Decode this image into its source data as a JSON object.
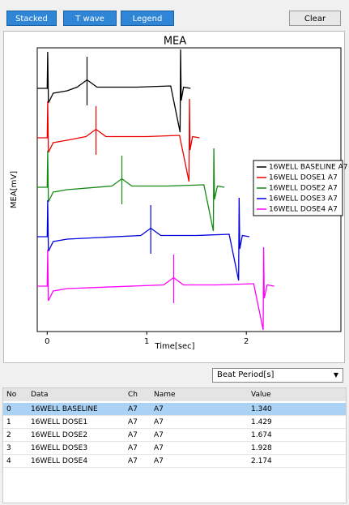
{
  "toolbar": {
    "buttons": [
      "Stacked",
      "T wave",
      "Legend"
    ],
    "clear": "Clear"
  },
  "chart_data": {
    "type": "line",
    "title": "MEA",
    "y_label": "MEA[mV]",
    "x_label": "Time[sec]",
    "xlim": [
      -0.1,
      2.95
    ],
    "xticks": [
      0,
      1,
      2
    ],
    "ylim": [
      -2,
      2
    ],
    "stacked": true,
    "legend": "right",
    "series": [
      {
        "name": "16WELL BASELINE A7",
        "color": "#000000",
        "t_wave": 0.4,
        "x": [
          -0.1,
          0,
          0.005,
          0.012,
          0.06,
          0.2,
          0.3,
          0.4,
          0.5,
          0.9,
          1.24,
          1.335,
          1.34,
          1.346,
          1.37,
          1.44
        ],
        "values": [
          0,
          0,
          1.5,
          -0.6,
          -0.2,
          -0.1,
          0.05,
          0.35,
          0.05,
          0.05,
          0.1,
          -1.8,
          1.6,
          -0.5,
          0.05,
          0
        ]
      },
      {
        "name": "16WELL DOSE1 A7",
        "color": "#ee0000",
        "t_wave": 0.49,
        "x": [
          -0.1,
          0,
          0.005,
          0.012,
          0.06,
          0.2,
          0.39,
          0.49,
          0.59,
          1.0,
          1.329,
          1.424,
          1.429,
          1.435,
          1.46,
          1.53
        ],
        "values": [
          0,
          0,
          1.5,
          -0.6,
          -0.2,
          -0.1,
          0.05,
          0.35,
          0.05,
          0.05,
          0.1,
          -1.8,
          1.6,
          -0.5,
          0.05,
          0
        ]
      },
      {
        "name": "16WELL DOSE2 A7",
        "color": "#148a14",
        "t_wave": 0.75,
        "x": [
          -0.1,
          0,
          0.005,
          0.012,
          0.06,
          0.2,
          0.65,
          0.75,
          0.85,
          1.2,
          1.574,
          1.669,
          1.674,
          1.68,
          1.71,
          1.78
        ],
        "values": [
          0,
          0,
          1.5,
          -0.6,
          -0.2,
          -0.1,
          0.05,
          0.35,
          0.05,
          0.05,
          0.1,
          -1.8,
          1.6,
          -0.5,
          0.05,
          0
        ]
      },
      {
        "name": "16WELL DOSE3 A7",
        "color": "#0000dd",
        "t_wave": 1.04,
        "x": [
          -0.1,
          0,
          0.005,
          0.012,
          0.06,
          0.2,
          0.94,
          1.04,
          1.14,
          1.5,
          1.828,
          1.923,
          1.928,
          1.934,
          1.96,
          2.03
        ],
        "values": [
          0,
          0,
          1.5,
          -0.6,
          -0.2,
          -0.1,
          0.05,
          0.35,
          0.05,
          0.05,
          0.1,
          -1.8,
          1.6,
          -0.5,
          0.05,
          0
        ]
      },
      {
        "name": "16WELL DOSE4 A7",
        "color": "#ff00ff",
        "t_wave": 1.27,
        "x": [
          -0.1,
          0,
          0.005,
          0.012,
          0.06,
          0.2,
          1.17,
          1.27,
          1.37,
          1.7,
          2.074,
          2.169,
          2.174,
          2.18,
          2.21,
          2.28
        ],
        "values": [
          0,
          0,
          1.5,
          -0.6,
          -0.2,
          -0.1,
          0.05,
          0.35,
          0.05,
          0.05,
          0.1,
          -1.8,
          1.6,
          -0.5,
          0.05,
          0
        ]
      }
    ]
  },
  "dropdown": "Beat Period[s]",
  "table": {
    "columns": [
      "No",
      "Data",
      "Ch",
      "Name",
      "Value"
    ],
    "rows": [
      [
        "0",
        "16WELL BASELINE",
        "A7",
        "A7",
        "1.340"
      ],
      [
        "1",
        "16WELL DOSE1",
        "A7",
        "A7",
        "1.429"
      ],
      [
        "2",
        "16WELL DOSE2",
        "A7",
        "A7",
        "1.674"
      ],
      [
        "3",
        "16WELL DOSE3",
        "A7",
        "A7",
        "1.928"
      ],
      [
        "4",
        "16WELL DOSE4",
        "A7",
        "A7",
        "2.174"
      ]
    ]
  }
}
